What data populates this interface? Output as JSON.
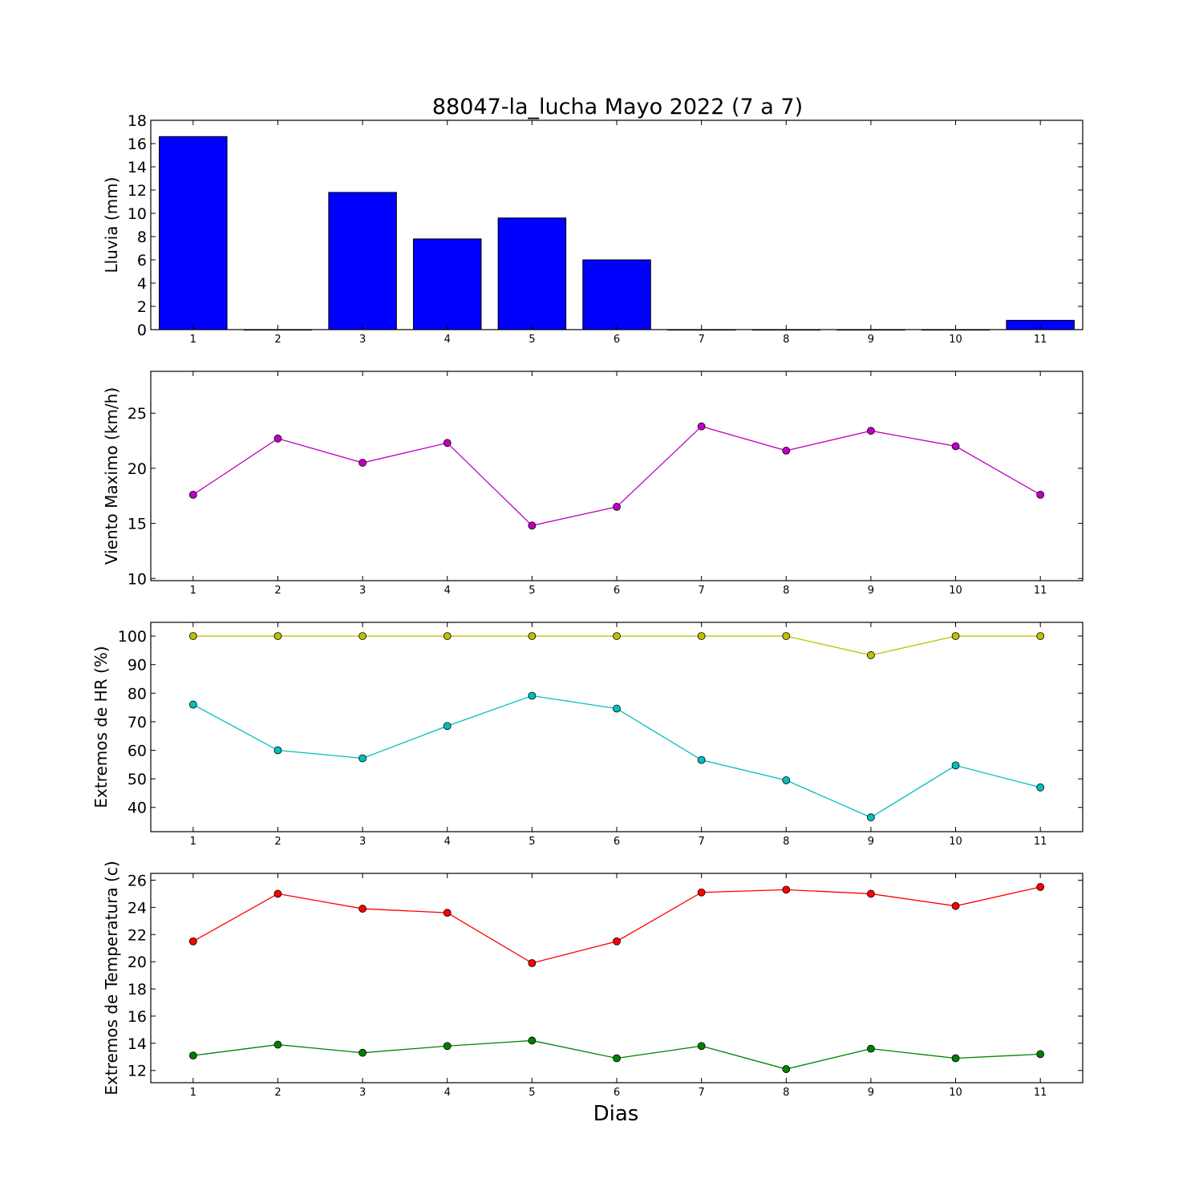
{
  "title": "88047-la_lucha Mayo 2022  (7 a 7)",
  "xlabel": "Dias",
  "chart_data": [
    {
      "type": "bar",
      "ylabel": "Lluvia (mm)",
      "x": [
        1,
        2,
        3,
        4,
        5,
        6,
        7,
        8,
        9,
        10,
        11
      ],
      "xlim": [
        0.5,
        11.5
      ],
      "ylim": [
        0,
        18
      ],
      "yticks": [
        0,
        2,
        4,
        6,
        8,
        10,
        12,
        14,
        16,
        18
      ],
      "grid": false,
      "series": [
        {
          "color": "#0000ff",
          "values": [
            16.6,
            0,
            11.8,
            7.8,
            9.6,
            6.0,
            0,
            0,
            0,
            0,
            0.8
          ]
        }
      ]
    },
    {
      "type": "line",
      "ylabel": "Viento Maximo (km/h)",
      "x": [
        1,
        2,
        3,
        4,
        5,
        6,
        7,
        8,
        9,
        10,
        11
      ],
      "xlim": [
        0.5,
        11.5
      ],
      "ylim": [
        9.8,
        28.8
      ],
      "yticks": [
        10,
        15,
        20,
        25
      ],
      "grid": false,
      "series": [
        {
          "color": "#bf00bf",
          "values": [
            17.6,
            22.7,
            20.5,
            22.3,
            14.8,
            16.5,
            23.8,
            21.6,
            23.4,
            22.0,
            17.6
          ]
        }
      ]
    },
    {
      "type": "line",
      "ylabel": "Extremos de HR (%)",
      "x": [
        1,
        2,
        3,
        4,
        5,
        6,
        7,
        8,
        9,
        10,
        11
      ],
      "xlim": [
        0.5,
        11.5
      ],
      "ylim": [
        31.5,
        104.8
      ],
      "yticks": [
        40,
        50,
        60,
        70,
        80,
        90,
        100
      ],
      "grid": false,
      "series": [
        {
          "color": "#bfbf00",
          "values": [
            100,
            100,
            100,
            100,
            100,
            100,
            100,
            100,
            93.3,
            100,
            100
          ]
        },
        {
          "color": "#00bfbf",
          "values": [
            76,
            60,
            57.2,
            68.5,
            79.1,
            74.6,
            56.6,
            49.5,
            36.5,
            54.7,
            47
          ]
        }
      ]
    },
    {
      "type": "line",
      "ylabel": "Extremos de Temperatura (c)",
      "x": [
        1,
        2,
        3,
        4,
        5,
        6,
        7,
        8,
        9,
        10,
        11
      ],
      "xlim": [
        0.5,
        11.5
      ],
      "ylim": [
        11.1,
        26.5
      ],
      "yticks": [
        12,
        14,
        16,
        18,
        20,
        22,
        24,
        26
      ],
      "grid": false,
      "series": [
        {
          "color": "#ff0000",
          "values": [
            21.5,
            25.0,
            23.9,
            23.6,
            19.9,
            21.5,
            25.1,
            25.3,
            25.0,
            24.1,
            25.5
          ]
        },
        {
          "color": "#008000",
          "values": [
            13.1,
            13.9,
            13.3,
            13.8,
            14.2,
            12.9,
            13.8,
            12.1,
            13.6,
            12.9,
            13.2
          ]
        }
      ]
    }
  ]
}
